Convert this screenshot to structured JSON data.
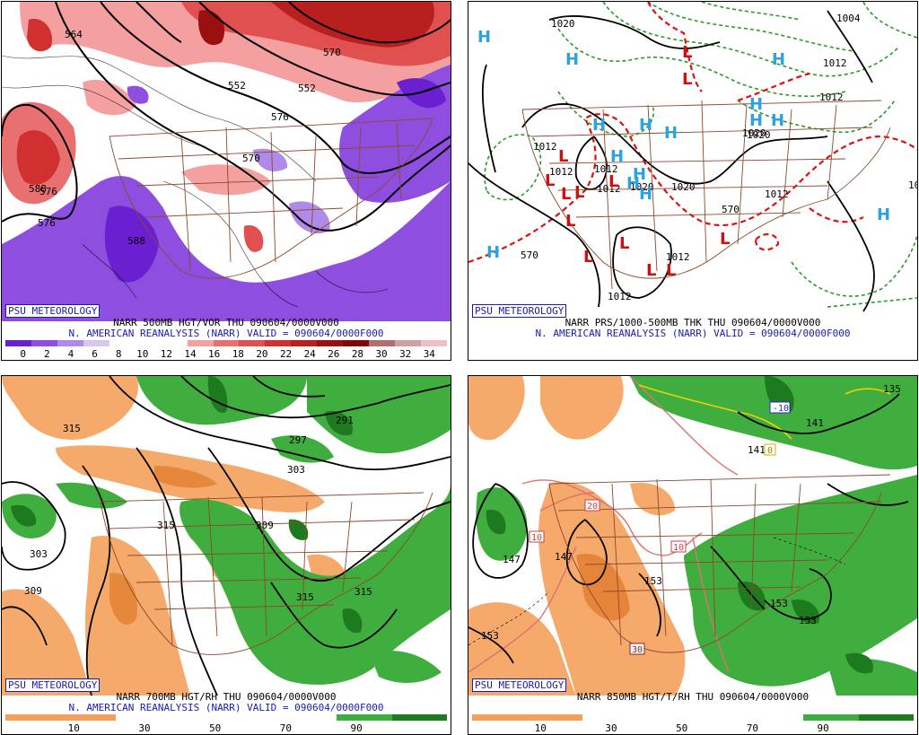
{
  "panels": {
    "p1": {
      "logo": "PSU METEOROLOGY",
      "title1": "NARR 500MB HGT/VOR THU 090604/0000V000",
      "title2": "N. AMERICAN REANALYSIS (NARR) VALID = 090604/0000F000",
      "colorbar": [
        "0",
        "2",
        "4",
        "6",
        "8",
        "10",
        "12",
        "14",
        "16",
        "18",
        "20",
        "22",
        "24",
        "26",
        "28",
        "30",
        "32",
        "34"
      ],
      "contour_labels": [
        "552",
        "570",
        "576",
        "576",
        "588",
        "576",
        "588",
        "552",
        "570",
        "564"
      ],
      "colors": [
        "#6a1fd0",
        "#8e4fe0",
        "#b08ae8",
        "#d8c8f0",
        "#ffffff",
        "#ffffff",
        "#ffffff",
        "#f4a0a0",
        "#e87070",
        "#e05050",
        "#d03030",
        "#b82020",
        "#9a1010",
        "#800808",
        "#b07070",
        "#d0a0a0",
        "#f0c0c0"
      ]
    },
    "p2": {
      "logo": "PSU METEOROLOGY",
      "title1": "NARR PRS/1000-500MB THK THU 090604/0000V000",
      "title2": "N. AMERICAN REANALYSIS (NARR) VALID = 090604/0000F000",
      "contour_labels": [
        "1020",
        "1004",
        "1012",
        "1012",
        "1020",
        "1012",
        "1012",
        "1020",
        "1020",
        "1012",
        "1012",
        "1012",
        "1012",
        "1020",
        "570",
        "570",
        "10",
        "1012"
      ],
      "highs": [
        "H",
        "H",
        "H",
        "H",
        "H",
        "H",
        "H",
        "H",
        "H",
        "H",
        "H",
        "H",
        "H",
        "H",
        "H"
      ],
      "lows": [
        "L",
        "L",
        "L",
        "L",
        "L",
        "L",
        "L",
        "L",
        "L",
        "L",
        "L",
        "L",
        "L"
      ]
    },
    "p3": {
      "logo": "PSU METEOROLOGY",
      "title1": "NARR 700MB HGT/RH THU 090604/0000V000",
      "title2": "N. AMERICAN REANALYSIS (NARR) VALID = 090604/0000F000",
      "colorbar": [
        "10",
        "30",
        "50",
        "70",
        "90"
      ],
      "contour_labels": [
        "315",
        "297",
        "291",
        "303",
        "315",
        "309",
        "303",
        "309",
        "315",
        "315"
      ]
    },
    "p4": {
      "logo": "PSU METEOROLOGY",
      "title1": "NARR 850MB HGT/T/RH THU 090604/0000V000",
      "colorbar": [
        "10",
        "30",
        "50",
        "70",
        "90"
      ],
      "contour_labels": [
        "147",
        "147",
        "153",
        "153",
        "153",
        "153",
        "141",
        "141",
        "135"
      ],
      "temp_labels": [
        "-10",
        "0",
        "10",
        "20",
        "10",
        "30"
      ]
    }
  }
}
